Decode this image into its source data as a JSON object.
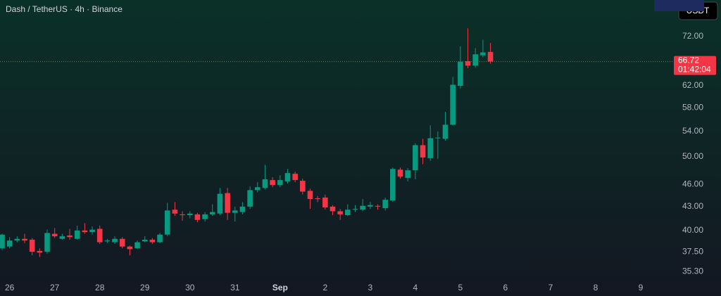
{
  "chart_data": {
    "type": "candlestick",
    "title": "Dash / TetherUS · 4h · Binance",
    "currency_button": "USDT",
    "log_scale": true,
    "up_color": "#089981",
    "down_color": "#f23645",
    "ylim": [
      34.3,
      80.4
    ],
    "yticks": [
      {
        "value": 35.3,
        "label": "35.30"
      },
      {
        "value": 37.5,
        "label": "37.50"
      },
      {
        "value": 40,
        "label": "40.00"
      },
      {
        "value": 43,
        "label": "43.00"
      },
      {
        "value": 46,
        "label": "46.00"
      },
      {
        "value": 50,
        "label": "50.00"
      },
      {
        "value": 54,
        "label": "54.00"
      },
      {
        "value": 58,
        "label": "58.00"
      },
      {
        "value": 62,
        "label": "62.00"
      },
      {
        "value": 72,
        "label": "72.00"
      }
    ],
    "high": [
      39.6,
      39.2,
      39.3,
      39.6,
      39.1,
      37.9,
      40.1,
      40.3,
      39.6,
      40.2,
      40.6,
      40.9,
      40.5,
      40.6,
      39.0,
      39.3,
      39.2,
      38.2,
      38.8,
      39.3,
      39.1,
      39.7,
      43.5,
      43.6,
      42.4,
      42.4,
      42.2,
      42.3,
      43.3,
      45.5,
      45.5,
      43.0,
      43.6,
      45.7,
      46.3,
      48.8,
      47.0,
      47.3,
      48.2,
      47.8,
      46.8,
      45.4,
      44.4,
      44.6,
      43.2,
      42.7,
      43.3,
      43.2,
      44.0,
      43.6,
      43.3,
      44.2,
      48.4,
      48.4,
      48.3,
      52.1,
      52.8,
      55.0,
      54.0,
      57.3,
      63.7,
      69.9,
      73.8,
      69.5,
      71.3,
      70.6,
      null,
      null,
      null,
      null,
      null,
      null,
      null,
      null,
      null,
      null,
      null,
      null,
      null,
      null,
      null,
      null,
      null,
      null,
      null,
      null,
      null,
      null
    ],
    "low": [
      37.7,
      37.9,
      38.6,
      38.5,
      37.1,
      36.91,
      37.3,
      39.1,
      38.9,
      38.9,
      38.9,
      39.6,
      39.5,
      38.4,
      38.5,
      38.4,
      37.9,
      37.1,
      37.8,
      38.6,
      38.4,
      38.5,
      39.3,
      41.8,
      41.2,
      41.5,
      41.0,
      41.1,
      41.8,
      41.9,
      41.3,
      41.1,
      42.0,
      42.7,
      44.9,
      45.3,
      45.6,
      45.6,
      46.1,
      46.3,
      44.6,
      42.7,
      43.6,
      42.6,
      41.9,
      41.3,
      41.8,
      42.3,
      42.4,
      42.7,
      42.6,
      42.5,
      43.6,
      46.8,
      46.4,
      46.7,
      48.9,
      49.4,
      49.7,
      52.5,
      55.0,
      61.5,
      65.4,
      65.5,
      67.6,
      66.3,
      null,
      null,
      null,
      null,
      null,
      null,
      null,
      null,
      null,
      null,
      null,
      null,
      null,
      null,
      null,
      null,
      null,
      null,
      null,
      null,
      null,
      null
    ],
    "last_price": {
      "value": 66.72,
      "label": "66.72",
      "countdown": "01:42:04"
    },
    "categories": [
      null,
      "26",
      null,
      null,
      null,
      null,
      null,
      "27",
      null,
      null,
      null,
      null,
      null,
      "28",
      null,
      null,
      null,
      null,
      null,
      "29",
      null,
      null,
      null,
      null,
      null,
      "30",
      null,
      null,
      null,
      null,
      null,
      "31",
      null,
      null,
      null,
      null,
      null,
      "Sep",
      null,
      null,
      null,
      null,
      null,
      "2",
      null,
      null,
      null,
      null,
      null,
      "3",
      null,
      null,
      null,
      null,
      null,
      "4",
      null,
      null,
      null,
      null,
      null,
      "5",
      null,
      null,
      null,
      null,
      null,
      "6",
      null,
      null,
      null,
      null,
      null,
      "7",
      null,
      null,
      null,
      null,
      null,
      "8",
      null,
      null,
      null,
      null,
      null,
      "9",
      null,
      null
    ],
    "open": [
      37.9,
      38.1,
      38.8,
      39.0,
      38.9,
      37.6,
      37.5,
      39.6,
      39.0,
      39.4,
      39.0,
      40.0,
      39.8,
      40.2,
      38.7,
      38.6,
      39.0,
      38.1,
      37.9,
      38.7,
      38.9,
      38.6,
      39.5,
      42.6,
      42.0,
      41.9,
      42.0,
      41.4,
      42.0,
      42.1,
      44.8,
      42.2,
      42.3,
      43.0,
      45.2,
      45.5,
      46.6,
      45.9,
      46.4,
      47.5,
      46.5,
      45.1,
      44.1,
      44.2,
      43.0,
      42.4,
      41.9,
      42.6,
      42.6,
      43.0,
      43.1,
      42.8,
      43.8,
      48.1,
      46.9,
      48.0,
      51.8,
      49.8,
      52.9,
      52.8,
      55.1,
      62.0,
      66.8,
      65.9,
      68.0,
      68.7,
      null,
      null,
      null,
      null,
      null,
      null,
      null,
      null,
      null,
      null,
      null,
      null,
      null,
      null,
      null,
      null,
      null,
      null,
      null,
      null,
      null,
      null
    ],
    "close": [
      39.5,
      38.8,
      39.0,
      38.8,
      37.5,
      37.4,
      39.7,
      39.3,
      39.3,
      39.2,
      40.0,
      39.8,
      40.1,
      38.6,
      38.8,
      39.0,
      38.1,
      37.8,
      38.6,
      38.9,
      38.6,
      39.5,
      42.5,
      42.1,
      41.9,
      42.1,
      41.3,
      42.0,
      42.3,
      44.7,
      42.2,
      42.5,
      43.0,
      45.2,
      45.6,
      46.7,
      45.9,
      46.6,
      47.6,
      46.6,
      45.0,
      44.0,
      44.0,
      42.9,
      42.4,
      42.0,
      42.6,
      42.7,
      43.1,
      43.2,
      43.0,
      43.9,
      48.2,
      47.1,
      48.0,
      51.8,
      49.9,
      52.9,
      53.0,
      55.1,
      62.2,
      66.7,
      65.9,
      68.2,
      68.6,
      66.72,
      null,
      null,
      null,
      null,
      null,
      null,
      null,
      null,
      null,
      null,
      null,
      null,
      null,
      null,
      null,
      null,
      null,
      null,
      null,
      null,
      null,
      null
    ]
  }
}
